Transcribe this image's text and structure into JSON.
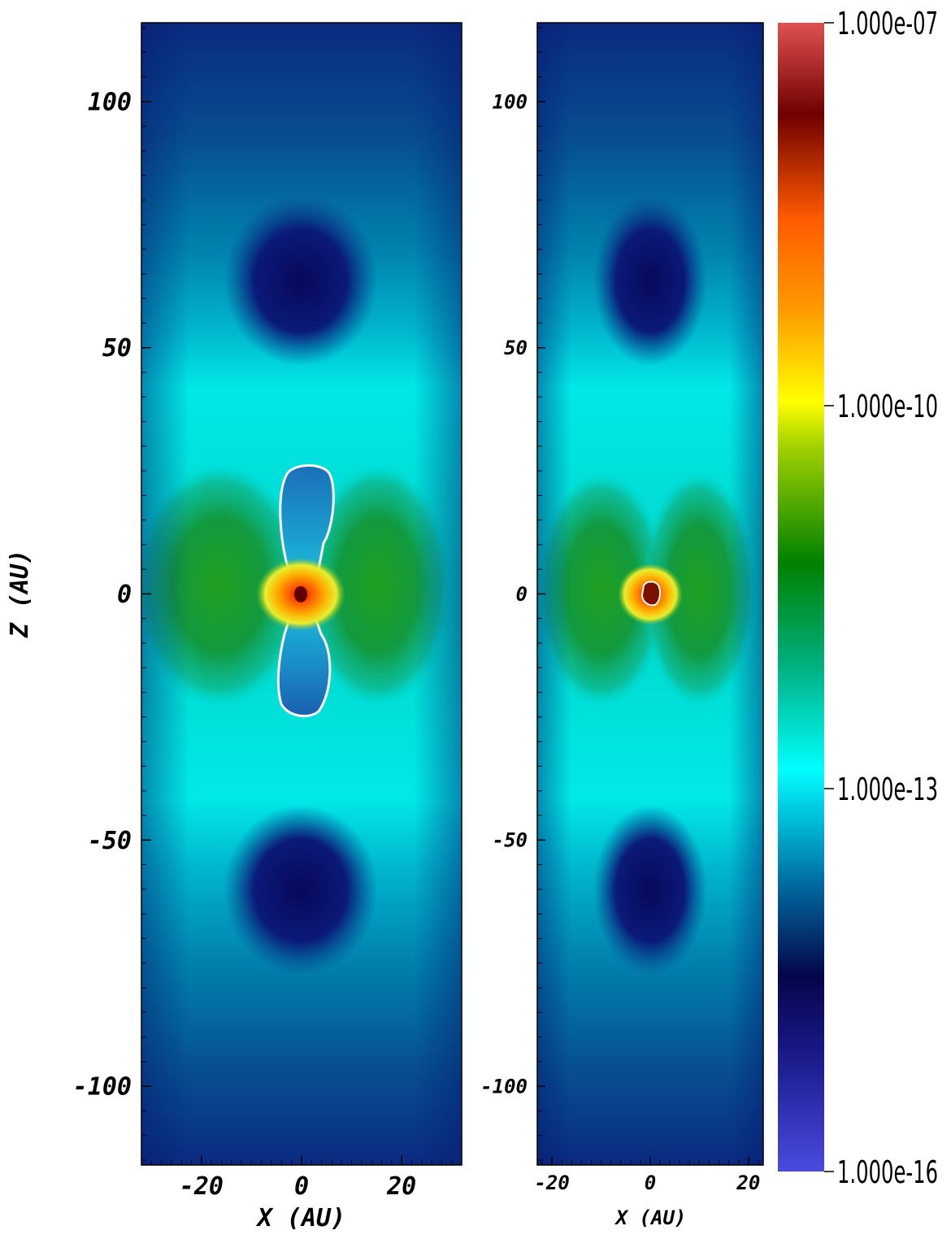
{
  "chart_data": [
    {
      "type": "heatmap",
      "panel": "left",
      "xlabel": "X (AU)",
      "ylabel": "Z (AU)",
      "xlim": [
        -32,
        32
      ],
      "ylim": [
        -116,
        116
      ],
      "xticks": [
        -20,
        0,
        20
      ],
      "yticks": [
        100,
        50,
        0,
        -50,
        -100
      ],
      "xtick_labels": [
        "-20",
        "0",
        "20"
      ],
      "ytick_labels": [
        "100",
        "50",
        "0",
        "-50",
        "-100"
      ],
      "contour": "white outline around central bipolar outflow region",
      "outflow_extent_z": [
        -24,
        26
      ]
    },
    {
      "type": "heatmap",
      "panel": "right",
      "xlabel": "X (AU)",
      "ylabel": "",
      "xlim": [
        -23,
        23
      ],
      "ylim": [
        -116,
        116
      ],
      "xticks": [
        -20,
        0,
        20
      ],
      "yticks": [
        100,
        50,
        0,
        -50,
        -100
      ],
      "xtick_labels": [
        "-20",
        "0",
        "20"
      ],
      "ytick_labels": [
        "100",
        "50",
        "0",
        "-50",
        "-100"
      ],
      "contour": "small white contour around central core"
    }
  ],
  "colorbar": {
    "scale": "log",
    "range": [
      1e-16,
      1e-07
    ],
    "tick_labels": [
      "1.000e-07",
      "1.000e-10",
      "1.000e-13",
      "1.000e-16"
    ],
    "tick_values": [
      1e-07,
      1e-10,
      1e-13,
      1e-16
    ],
    "colors": [
      "#4a4ae0",
      "#0d0d6e",
      "#00ffff",
      "#008800",
      "#ffff00",
      "#ff6a00",
      "#7a0000",
      "#e05050"
    ]
  }
}
